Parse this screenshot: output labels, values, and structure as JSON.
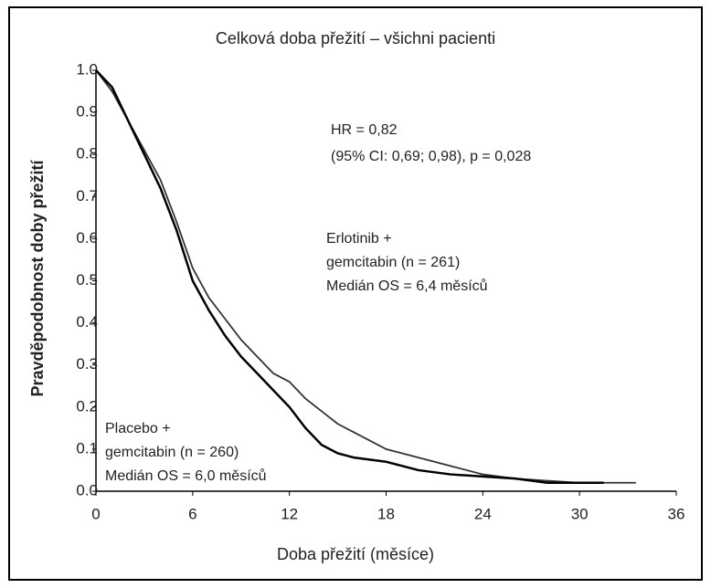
{
  "chart_data": {
    "type": "line",
    "title": "Celková doba přežití – všichni pacienti",
    "x_label": "Doba přežití (měsíce)",
    "y_label": "Pravděpodobnost doby přežití",
    "xlim": [
      0,
      36
    ],
    "xticks": [
      0,
      6,
      12,
      18,
      24,
      30,
      36
    ],
    "ylim": [
      0,
      1
    ],
    "yticks": [
      {
        "value": 0,
        "label": "0.0"
      },
      0.1,
      0.2,
      0.3,
      0.4,
      0.5,
      0.6,
      0.7,
      0.8,
      0.9,
      {
        "value": 1,
        "label": "1.0"
      }
    ],
    "annotations": [
      [
        "HR = 0,82",
        "(95% CI: 0,69; 0,98), p = 0,028"
      ],
      [
        "Erlotinib +",
        "gemcitabin (n = 261)",
        "Medián OS = 6,4 měsíců"
      ],
      [
        "Placebo +",
        "gemcitabin (n = 260)",
        "Medián OS = 6,0 měsíců"
      ]
    ],
    "series": [
      {
        "color": "#333333",
        "x": [
          0,
          1,
          2,
          3,
          4,
          5,
          6,
          7,
          8,
          9,
          10,
          11,
          12,
          13,
          14,
          15,
          16,
          18,
          20,
          22,
          24,
          26,
          28,
          30,
          33.5
        ],
        "values": [
          1.0,
          0.95,
          0.88,
          0.81,
          0.74,
          0.64,
          0.53,
          0.46,
          0.41,
          0.36,
          0.32,
          0.28,
          0.26,
          0.22,
          0.19,
          0.16,
          0.14,
          0.1,
          0.08,
          0.06,
          0.04,
          0.03,
          0.025,
          0.02,
          0.02
        ]
      },
      {
        "color": "#000000",
        "x": [
          0,
          1,
          2,
          3,
          4,
          5,
          6,
          7,
          8,
          9,
          10,
          11,
          12,
          13,
          14,
          15,
          16,
          18,
          20,
          22,
          24,
          26,
          28,
          30,
          31.5
        ],
        "values": [
          1.0,
          0.96,
          0.88,
          0.8,
          0.72,
          0.62,
          0.5,
          0.43,
          0.37,
          0.32,
          0.28,
          0.24,
          0.2,
          0.15,
          0.11,
          0.09,
          0.08,
          0.07,
          0.05,
          0.04,
          0.035,
          0.03,
          0.02,
          0.02,
          0.02
        ]
      }
    ]
  }
}
